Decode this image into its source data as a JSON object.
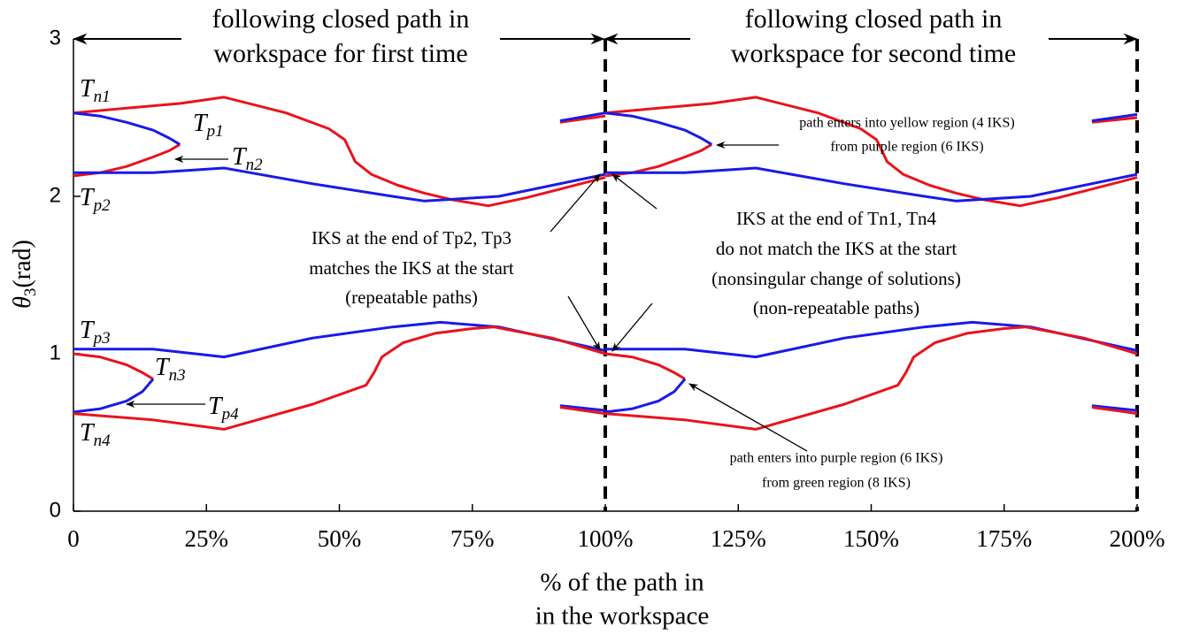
{
  "chart_data": {
    "type": "line",
    "xlabel": [
      "% of the path in",
      "in the workspace"
    ],
    "ylabel": {
      "main": "θ",
      "sub": "3",
      "rest": "(rad)"
    },
    "xlim": [
      0,
      200
    ],
    "ylim": [
      0,
      3
    ],
    "xticks": [
      {
        "value": 0,
        "label": "0"
      },
      {
        "value": 25,
        "label": "25%"
      },
      {
        "value": 50,
        "label": "50%"
      },
      {
        "value": 75,
        "label": "75%"
      },
      {
        "value": 100,
        "label": "100%"
      },
      {
        "value": 125,
        "label": "125%"
      },
      {
        "value": 150,
        "label": "150%"
      },
      {
        "value": 175,
        "label": "175%"
      },
      {
        "value": 200,
        "label": "200%"
      }
    ],
    "yticks": [
      0,
      1,
      2,
      3
    ],
    "vlines": [
      100,
      200
    ],
    "series": [
      {
        "color": "#e8141c",
        "x": [
          0,
          10,
          20,
          28.3,
          40,
          48,
          51,
          53,
          56,
          61,
          66,
          71,
          78,
          85,
          92,
          100
        ],
        "values": [
          2.53,
          2.56,
          2.59,
          2.63,
          2.53,
          2.43,
          2.36,
          2.22,
          2.14,
          2.07,
          2.02,
          1.98,
          1.94,
          1.99,
          2.05,
          2.12
        ]
      },
      {
        "color": "#e8141c",
        "x": [
          100,
          110,
          120,
          128.3,
          140,
          148,
          151,
          153,
          156,
          161,
          166,
          171,
          178,
          185,
          192,
          200
        ],
        "values": [
          2.53,
          2.56,
          2.59,
          2.63,
          2.53,
          2.43,
          2.36,
          2.22,
          2.14,
          2.07,
          2.02,
          1.98,
          1.94,
          1.99,
          2.05,
          2.12
        ]
      },
      {
        "color": "#e8141c",
        "x": [
          91.5,
          100
        ],
        "values": [
          2.47,
          2.51
        ]
      },
      {
        "color": "#e8141c",
        "x": [
          191.5,
          200
        ],
        "values": [
          2.47,
          2.5
        ]
      },
      {
        "color": "#1a1ae6",
        "x": [
          91.5,
          100
        ],
        "values": [
          2.48,
          2.53
        ]
      },
      {
        "color": "#1a1ae6",
        "x": [
          191.5,
          200
        ],
        "values": [
          2.48,
          2.52
        ]
      },
      {
        "color": "#e8141c",
        "x": [
          0,
          5,
          10,
          15,
          18,
          20
        ],
        "values": [
          2.13,
          2.15,
          2.19,
          2.25,
          2.29,
          2.33
        ]
      },
      {
        "color": "#1a1ae6",
        "x": [
          0,
          5,
          10,
          15,
          18,
          20
        ],
        "values": [
          2.53,
          2.51,
          2.47,
          2.42,
          2.37,
          2.33
        ]
      },
      {
        "color": "#e8141c",
        "x": [
          100,
          105,
          110,
          115,
          118,
          120
        ],
        "values": [
          2.13,
          2.15,
          2.19,
          2.25,
          2.29,
          2.33
        ]
      },
      {
        "color": "#1a1ae6",
        "x": [
          100,
          105,
          110,
          115,
          118,
          120
        ],
        "values": [
          2.53,
          2.51,
          2.47,
          2.42,
          2.37,
          2.33
        ]
      },
      {
        "color": "#1a1ae6",
        "x": [
          0,
          15,
          28.3,
          45,
          60,
          66,
          80,
          100
        ],
        "values": [
          2.15,
          2.15,
          2.18,
          2.08,
          2.0,
          1.97,
          2.0,
          2.14
        ]
      },
      {
        "color": "#1a1ae6",
        "x": [
          100,
          115,
          128.3,
          145,
          160,
          166,
          180,
          200
        ],
        "values": [
          2.15,
          2.15,
          2.18,
          2.08,
          2.0,
          1.97,
          2.0,
          2.14
        ]
      },
      {
        "color": "#1a1ae6",
        "x": [
          0,
          15,
          28.3,
          45,
          60,
          69,
          80,
          100
        ],
        "values": [
          1.03,
          1.03,
          0.98,
          1.1,
          1.17,
          1.2,
          1.17,
          1.02
        ]
      },
      {
        "color": "#1a1ae6",
        "x": [
          100,
          115,
          128.3,
          145,
          160,
          169,
          180,
          200
        ],
        "values": [
          1.03,
          1.03,
          0.98,
          1.1,
          1.17,
          1.2,
          1.17,
          1.02
        ]
      },
      {
        "color": "#e8141c",
        "x": [
          0,
          5,
          10,
          13,
          15
        ],
        "values": [
          1.0,
          0.98,
          0.93,
          0.88,
          0.84
        ]
      },
      {
        "color": "#1a1ae6",
        "x": [
          0,
          5,
          10,
          13,
          15
        ],
        "values": [
          0.63,
          0.65,
          0.7,
          0.76,
          0.84
        ]
      },
      {
        "color": "#e8141c",
        "x": [
          100,
          105,
          110,
          113,
          115
        ],
        "values": [
          1.0,
          0.98,
          0.93,
          0.88,
          0.84
        ]
      },
      {
        "color": "#1a1ae6",
        "x": [
          100,
          105,
          110,
          113,
          115
        ],
        "values": [
          0.63,
          0.65,
          0.7,
          0.76,
          0.84
        ]
      },
      {
        "color": "#e8141c",
        "x": [
          0,
          15,
          28.3,
          45,
          55,
          56.5,
          58,
          62,
          68,
          75,
          79,
          90,
          100
        ],
        "values": [
          0.62,
          0.58,
          0.52,
          0.68,
          0.8,
          0.88,
          0.98,
          1.07,
          1.13,
          1.16,
          1.17,
          1.1,
          1.0
        ]
      },
      {
        "color": "#e8141c",
        "x": [
          100,
          115,
          128.3,
          145,
          155,
          156.5,
          158,
          162,
          168,
          175,
          179,
          190,
          200
        ],
        "values": [
          0.62,
          0.58,
          0.52,
          0.68,
          0.8,
          0.88,
          0.98,
          1.07,
          1.13,
          1.16,
          1.17,
          1.1,
          1.0
        ]
      },
      {
        "color": "#1a1ae6",
        "x": [
          91.5,
          100
        ],
        "values": [
          0.67,
          0.64
        ]
      },
      {
        "color": "#e8141c",
        "x": [
          91.5,
          100
        ],
        "values": [
          0.66,
          0.62
        ]
      },
      {
        "color": "#1a1ae6",
        "x": [
          191.5,
          200
        ],
        "values": [
          0.67,
          0.64
        ]
      },
      {
        "color": "#e8141c",
        "x": [
          191.5,
          200
        ],
        "values": [
          0.66,
          0.62
        ]
      }
    ],
    "curve_labels": [
      {
        "main": "T",
        "sub": "n1"
      },
      {
        "main": "T",
        "sub": "p1"
      },
      {
        "main": "T",
        "sub": "n2"
      },
      {
        "main": "T",
        "sub": "p2"
      },
      {
        "main": "T",
        "sub": "p3"
      },
      {
        "main": "T",
        "sub": "n3"
      },
      {
        "main": "T",
        "sub": "p4"
      },
      {
        "main": "T",
        "sub": "n4"
      }
    ],
    "annotations": [
      "following closed path in",
      "workspace for first time",
      "following closed path in",
      "workspace for second time",
      "path enters into yellow region (4 IKS)",
      "from purple region (6 IKS)",
      "IKS at the end of Tp2, Tp3",
      "matches the IKS at the start",
      "(repeatable paths)",
      "IKS at the end of Tn1, Tn4",
      "do not match the IKS at the start",
      "(nonsingular change of solutions)",
      "(non-repeatable paths)",
      "path enters into purple region (6 IKS)",
      "from green region (8 IKS)"
    ]
  }
}
